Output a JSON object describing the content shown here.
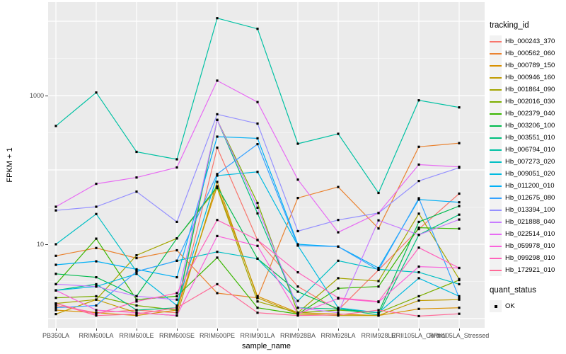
{
  "figure": {
    "background": "#FFFFFF",
    "panel_background": "#EBEBEB",
    "gridline_color": "#FFFFFF",
    "tick_color": "#333333",
    "tick_text_color": "#4D4D4D"
  },
  "axes": {
    "x": {
      "title": "sample_name"
    },
    "y": {
      "title": "FPKM + 1",
      "scale": "log10",
      "tick_labels": [
        "1000",
        "10"
      ],
      "tick_values": [
        1000,
        10
      ]
    }
  },
  "legend": {
    "tracking_title": "tracking_id",
    "quant_title": "quant_status",
    "quant_items": [
      {
        "label": "OK",
        "marker": "black-square",
        "marker_color": "#000000"
      }
    ]
  },
  "chart_data": {
    "type": "line",
    "title": "",
    "xlabel": "sample_name",
    "ylabel": "FPKM + 1",
    "y_scale": "log10",
    "ylim": [
      0.75,
      18000
    ],
    "grid": "on",
    "legend_position": "right",
    "point_marker": {
      "shape": "square",
      "color": "#000000",
      "size": 3.2
    },
    "major_gridline_values": [
      10000,
      1000,
      100,
      10,
      1
    ],
    "minor_gridline_values": [
      3162.3,
      316.23,
      31.623,
      3.1623
    ],
    "categories": [
      "PB350LA",
      "RRIM600LA",
      "RRIM600LE",
      "RRIM600SE",
      "RRIM600PE",
      "RRIM901LA",
      "RRIM928BA",
      "RRIM928LA",
      "RRIM928LE",
      "RRII105LA_Control",
      "RRII105LA_Stressed"
    ],
    "series": [
      {
        "name": "Hb_000243_370",
        "color": "#F8766D",
        "values": [
          1.5,
          1.2,
          1.3,
          1.2,
          199,
          11.4,
          2.7,
          1.3,
          4.5,
          16,
          48
        ]
      },
      {
        "name": "Hb_000562_060",
        "color": "#EA8331",
        "values": [
          7.0,
          8.9,
          6.5,
          8.3,
          2.2,
          1.9,
          42,
          59,
          16.3,
          205,
          229
        ]
      },
      {
        "name": "Hb_000789_150",
        "color": "#D89000",
        "values": [
          1.3,
          1.2,
          1.1,
          1.3,
          60,
          2.0,
          1.2,
          1.15,
          1.1,
          1.35,
          1.4
        ]
      },
      {
        "name": "Hb_000946_160",
        "color": "#C09B00",
        "values": [
          1.15,
          1.8,
          1.2,
          1.1,
          69,
          1.9,
          1.15,
          1.1,
          1.1,
          1.75,
          1.8
        ]
      },
      {
        "name": "Hb_001864_090",
        "color": "#A3A500",
        "values": [
          1.6,
          1.8,
          7.1,
          12,
          57,
          1.7,
          1.2,
          3.5,
          3.2,
          25.8,
          3.4
        ]
      },
      {
        "name": "Hb_002016_030",
        "color": "#7CAE00",
        "values": [
          1.9,
          2.0,
          1.5,
          1.3,
          470,
          36,
          1.2,
          1.3,
          1.2,
          2.0,
          3.3
        ]
      },
      {
        "name": "Hb_002379_040",
        "color": "#39B600",
        "values": [
          2.9,
          11.9,
          1.8,
          2.0,
          6.6,
          1.4,
          1.15,
          2.55,
          2.7,
          16.7,
          16.2
        ]
      },
      {
        "name": "Hb_003206_100",
        "color": "#00BB4E",
        "values": [
          4.0,
          3.6,
          2.0,
          12,
          60,
          6.4,
          2.3,
          1.35,
          1.2,
          20,
          32.7
        ]
      },
      {
        "name": "Hb_003551_010",
        "color": "#00BF7D",
        "values": [
          2.4,
          2.9,
          1.3,
          1.4,
          470,
          26,
          1.4,
          1.35,
          1.12,
          13.4,
          25
        ]
      },
      {
        "name": "Hb_006794_010",
        "color": "#00C1A3",
        "values": [
          390,
          1100,
          175,
          139,
          11000,
          7900,
          225,
          306,
          49,
          863,
          693
        ]
      },
      {
        "name": "Hb_007273_020",
        "color": "#00BFC4",
        "values": [
          10,
          25.5,
          4.3,
          6.0,
          7.9,
          6.4,
          1.73,
          6.0,
          4.6,
          4.2,
          2.9
        ]
      },
      {
        "name": "Hb_009051_020",
        "color": "#00BAE0",
        "values": [
          2.4,
          2.7,
          4.0,
          1.5,
          84,
          94,
          9.6,
          1.4,
          1.2,
          3.5,
          2.0
        ]
      },
      {
        "name": "Hb_011200_010",
        "color": "#00B0F6",
        "values": [
          5.3,
          5.9,
          4.6,
          3.6,
          280,
          266,
          10,
          9.3,
          4.8,
          40,
          36.7
        ]
      },
      {
        "name": "Hb_012675_080",
        "color": "#35A2FF",
        "values": [
          1.4,
          1.5,
          4.3,
          6.0,
          88,
          222,
          9.6,
          9.3,
          4.5,
          41.6,
          1.9
        ]
      },
      {
        "name": "Hb_013394_100",
        "color": "#9590FF",
        "values": [
          28.5,
          32,
          51,
          20,
          560,
          420,
          15,
          21.2,
          26.3,
          71,
          107
        ]
      },
      {
        "name": "Hb_021888_040",
        "color": "#C77CFF",
        "values": [
          2.9,
          2.7,
          2.0,
          1.8,
          470,
          31,
          1.4,
          1.2,
          21,
          13.4,
          21.5
        ]
      },
      {
        "name": "Hb_022514_010",
        "color": "#E76BF3",
        "values": [
          32,
          65,
          79,
          108,
          1590,
          818,
          74,
          14.5,
          26.3,
          118,
          110
        ]
      },
      {
        "name": "Hb_059978_010",
        "color": "#FA62DB",
        "values": [
          2.4,
          1.3,
          1.2,
          1.1,
          12.9,
          9.5,
          1.16,
          1.86,
          1.67,
          5.0,
          4.8
        ]
      },
      {
        "name": "Hb_099298_010",
        "color": "#FF62BC",
        "values": [
          1.6,
          1.15,
          1.7,
          2.2,
          21.2,
          11.4,
          4.2,
          1.9,
          1.7,
          9.0,
          4.8
        ]
      },
      {
        "name": "Hb_172921_010",
        "color": "#FF6A98",
        "values": [
          1.6,
          1.1,
          1.15,
          1.4,
          2.9,
          1.2,
          1.1,
          1.12,
          1.3,
          1.08,
          1.16
        ]
      }
    ]
  }
}
